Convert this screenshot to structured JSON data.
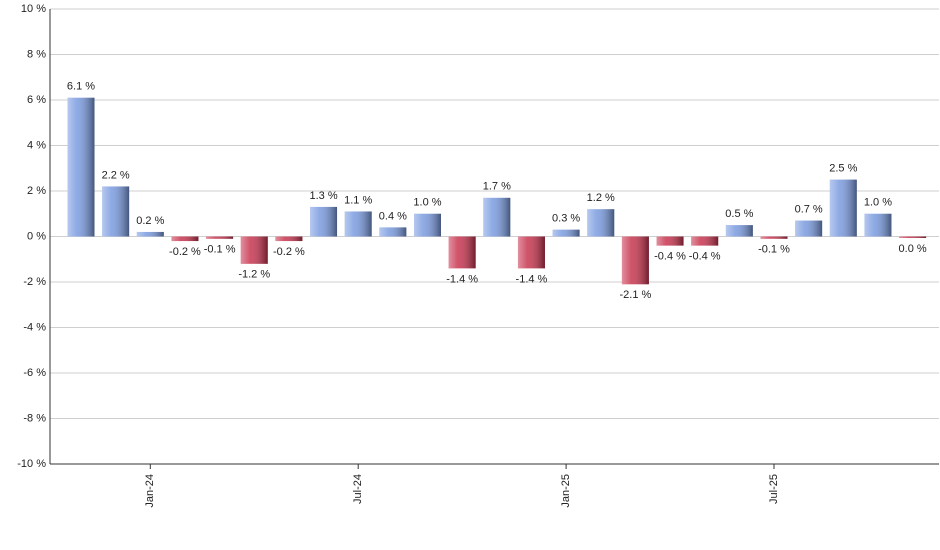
{
  "chart_data": {
    "type": "bar",
    "categories": [
      null,
      null,
      "Jan-24",
      null,
      null,
      null,
      null,
      null,
      "Jul-24",
      null,
      null,
      null,
      null,
      null,
      "Jan-25",
      null,
      null,
      null,
      null,
      null,
      "Jul-25",
      null,
      null,
      null,
      null
    ],
    "values": [
      6.1,
      2.2,
      0.2,
      -0.2,
      -0.1,
      -1.2,
      -0.2,
      1.3,
      1.1,
      0.4,
      1.0,
      -1.4,
      1.7,
      -1.4,
      0.3,
      1.2,
      -2.1,
      -0.4,
      -0.4,
      0.5,
      -0.1,
      0.7,
      2.5,
      1.0,
      0.0
    ],
    "value_labels": [
      "6.1 %",
      "2.2 %",
      "0.2 %",
      "-0.2 %",
      "-0.1 %",
      "-1.2 %",
      "-0.2 %",
      "1.3 %",
      "1.1 %",
      "0.4 %",
      "1.0 %",
      "-1.4 %",
      "1.7 %",
      "-1.4 %",
      "0.3 %",
      "1.2 %",
      "-2.1 %",
      "-0.4 %",
      "-0.4 %",
      "0.5 %",
      "-0.1 %",
      "0.7 %",
      "2.5 %",
      "1.0 %",
      "0.0 %"
    ],
    "positive_color": "#7a9be0",
    "negative_color": "#c8344f",
    "ylim": [
      -10,
      10
    ],
    "yticks": [
      {
        "value": -10,
        "label": "-10 %"
      },
      {
        "value": -8,
        "label": "-8 %"
      },
      {
        "value": -6,
        "label": "-6 %"
      },
      {
        "value": -4,
        "label": "-4 %"
      },
      {
        "value": -2,
        "label": "-2 %"
      },
      {
        "value": 0,
        "label": "0 %"
      },
      {
        "value": 2,
        "label": "2 %"
      },
      {
        "value": 4,
        "label": "4 %"
      },
      {
        "value": 6,
        "label": "6 %"
      },
      {
        "value": 8,
        "label": "8 %"
      },
      {
        "value": 10,
        "label": "10 %"
      }
    ],
    "grid": true
  }
}
